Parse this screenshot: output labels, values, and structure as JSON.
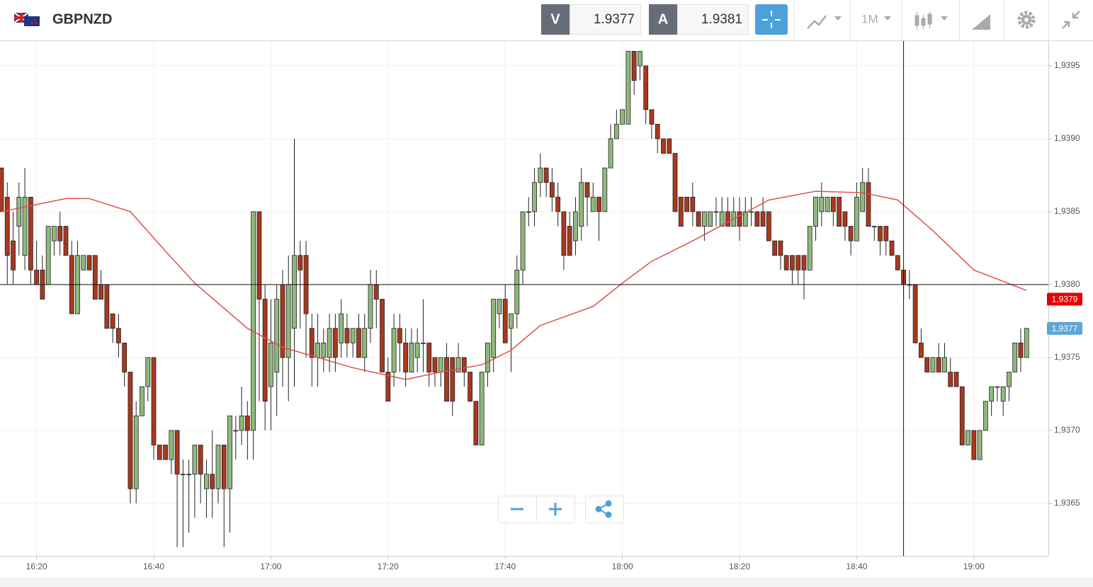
{
  "toolbar": {
    "symbol": "GBPNZD",
    "bid_label": "V",
    "bid": 1.9377,
    "ask_label": "A",
    "ask": 1.9381,
    "timeframe": "1M"
  },
  "chart_data": {
    "type": "candlestick",
    "categories": [
      "16:14",
      "16:15",
      "16:16",
      "16:17",
      "16:18",
      "16:19",
      "16:20",
      "16:21",
      "16:22",
      "16:23",
      "16:24",
      "16:25",
      "16:26",
      "16:27",
      "16:28",
      "16:29",
      "16:30",
      "16:31",
      "16:32",
      "16:33",
      "16:34",
      "16:35",
      "16:36",
      "16:37",
      "16:38",
      "16:39",
      "16:40",
      "16:41",
      "16:42",
      "16:43",
      "16:44",
      "16:45",
      "16:46",
      "16:47",
      "16:48",
      "16:49",
      "16:50",
      "16:51",
      "16:52",
      "16:53",
      "16:54",
      "16:55",
      "16:56",
      "16:57",
      "16:58",
      "16:59",
      "17:00",
      "17:01",
      "17:02",
      "17:03",
      "17:04",
      "17:05",
      "17:06",
      "17:07",
      "17:08",
      "17:09",
      "17:10",
      "17:11",
      "17:12",
      "17:13",
      "17:14",
      "17:15",
      "17:16",
      "17:17",
      "17:18",
      "17:19",
      "17:20",
      "17:21",
      "17:22",
      "17:23",
      "17:24",
      "17:25",
      "17:26",
      "17:27",
      "17:28",
      "17:29",
      "17:30",
      "17:31",
      "17:32",
      "17:33",
      "17:34",
      "17:35",
      "17:36",
      "17:37",
      "17:38",
      "17:39",
      "17:40",
      "17:41",
      "17:42",
      "17:43",
      "17:44",
      "17:45",
      "17:46",
      "17:47",
      "17:48",
      "17:49",
      "17:50",
      "17:51",
      "17:52",
      "17:53",
      "17:54",
      "17:55",
      "17:56",
      "17:57",
      "17:58",
      "17:59",
      "18:00",
      "18:01",
      "18:02",
      "18:03",
      "18:04",
      "18:05",
      "18:06",
      "18:07",
      "18:08",
      "18:09",
      "18:10",
      "18:11",
      "18:12",
      "18:13",
      "18:14",
      "18:15",
      "18:16",
      "18:17",
      "18:18",
      "18:19",
      "18:20",
      "18:21",
      "18:22",
      "18:23",
      "18:24",
      "18:25",
      "18:26",
      "18:27",
      "18:28",
      "18:29",
      "18:30",
      "18:31",
      "18:32",
      "18:33",
      "18:34",
      "18:35",
      "18:36",
      "18:37",
      "18:38",
      "18:39",
      "18:40",
      "18:41",
      "18:42",
      "18:43",
      "18:44",
      "18:45",
      "18:46",
      "18:47",
      "18:48",
      "18:49",
      "18:50",
      "18:51",
      "18:52",
      "18:53",
      "18:54",
      "18:55",
      "18:56",
      "18:57",
      "18:58",
      "18:59",
      "19:00",
      "19:01",
      "19:02",
      "19:03",
      "19:04",
      "19:05",
      "19:06",
      "19:07",
      "19:08",
      "19:09"
    ],
    "open": [
      1.9388,
      1.9386,
      1.9383,
      1.9384,
      1.9382,
      1.9386,
      1.9381,
      1.9381,
      1.938,
      1.9383,
      1.9384,
      1.9384,
      1.9382,
      1.9378,
      1.9381,
      1.9382,
      1.9382,
      1.938,
      1.938,
      1.9378,
      1.9377,
      1.9376,
      1.9374,
      1.9366,
      1.9371,
      1.9373,
      1.9375,
      1.9369,
      1.9369,
      1.9368,
      1.937,
      1.9367,
      1.9367,
      1.9367,
      1.9369,
      1.9366,
      1.9367,
      1.9366,
      1.9369,
      1.9366,
      1.937,
      1.937,
      1.9371,
      1.937,
      1.9385,
      1.9379,
      1.9373,
      1.9374,
      1.938,
      1.9375,
      1.9377,
      1.9382,
      1.9382,
      1.9377,
      1.9375,
      1.9375,
      1.9375,
      1.9377,
      1.9376,
      1.9377,
      1.9376,
      1.9377,
      1.9375,
      1.9377,
      1.938,
      1.9379,
      1.9374,
      1.9374,
      1.9377,
      1.9376,
      1.9374,
      1.9375,
      1.9376,
      1.9376,
      1.9375,
      1.9374,
      1.9375,
      1.9375,
      1.9374,
      1.9375,
      1.9374,
      1.9372,
      1.9369,
      1.9374,
      1.9375,
      1.9378,
      1.9379,
      1.9377,
      1.9378,
      1.9381,
      1.9385,
      1.9385,
      1.9387,
      1.9388,
      1.9387,
      1.9386,
      1.9385,
      1.9384,
      1.9383,
      1.9384,
      1.9387,
      1.9385,
      1.9386,
      1.9385,
      1.9388,
      1.939,
      1.9391,
      1.9391,
      1.9396,
      1.9395,
      1.9395,
      1.9392,
      1.9391,
      1.939,
      1.939,
      1.9389,
      1.9386,
      1.9386,
      1.9386,
      1.9385,
      1.9384,
      1.9384,
      1.9385,
      1.9384,
      1.9385,
      1.9384,
      1.9385,
      1.9384,
      1.9385,
      1.9385,
      1.9385,
      1.9385,
      1.9383,
      1.9383,
      1.9382,
      1.9382,
      1.9382,
      1.9382,
      1.9381,
      1.9384,
      1.9385,
      1.9385,
      1.9386,
      1.9386,
      1.9385,
      1.9384,
      1.9383,
      1.9385,
      1.9387,
      1.9384,
      1.9384,
      1.9384,
      1.9383,
      1.9382,
      1.9381,
      1.938,
      1.938,
      1.9376,
      1.9375,
      1.9374,
      1.9375,
      1.9374,
      1.9374,
      1.9374,
      1.9373,
      1.9369,
      1.937,
      1.9368,
      1.937,
      1.9372,
      1.9373,
      1.9372,
      1.9373,
      1.9374,
      1.9376,
      1.9375
    ],
    "high": [
      1.9388,
      1.9387,
      1.9385,
      1.9387,
      1.9388,
      1.9386,
      1.9383,
      1.9382,
      1.9384,
      1.9384,
      1.9385,
      1.9384,
      1.9383,
      1.9383,
      1.9382,
      1.9382,
      1.9382,
      1.9381,
      1.938,
      1.9378,
      1.9378,
      1.9376,
      1.9374,
      1.9372,
      1.9373,
      1.9375,
      1.9375,
      1.9369,
      1.9369,
      1.937,
      1.937,
      1.9368,
      1.9368,
      1.9369,
      1.9369,
      1.9368,
      1.937,
      1.9369,
      1.9369,
      1.9371,
      1.9371,
      1.9373,
      1.9372,
      1.9385,
      1.9385,
      1.938,
      1.9379,
      1.938,
      1.9381,
      1.9382,
      1.939,
      1.9383,
      1.9383,
      1.9378,
      1.9378,
      1.9377,
      1.9378,
      1.9378,
      1.9379,
      1.9378,
      1.9377,
      1.9378,
      1.9378,
      1.9381,
      1.9381,
      1.9379,
      1.9375,
      1.9378,
      1.9378,
      1.9377,
      1.9377,
      1.9377,
      1.9379,
      1.9376,
      1.9375,
      1.9375,
      1.9376,
      1.9375,
      1.9376,
      1.9375,
      1.9374,
      1.9372,
      1.9374,
      1.9376,
      1.9379,
      1.9379,
      1.938,
      1.9378,
      1.9382,
      1.9385,
      1.9386,
      1.9388,
      1.9389,
      1.9388,
      1.9388,
      1.9387,
      1.9385,
      1.9385,
      1.9386,
      1.9388,
      1.9387,
      1.9387,
      1.9386,
      1.9388,
      1.9391,
      1.9392,
      1.9392,
      1.9396,
      1.9396,
      1.9396,
      1.9395,
      1.9392,
      1.9391,
      1.939,
      1.939,
      1.9389,
      1.9386,
      1.9386,
      1.9387,
      1.9385,
      1.9385,
      1.9385,
      1.9386,
      1.9386,
      1.9386,
      1.9386,
      1.9386,
      1.9386,
      1.9386,
      1.9385,
      1.9386,
      1.9385,
      1.9383,
      1.9383,
      1.9382,
      1.9382,
      1.9382,
      1.9382,
      1.9384,
      1.9386,
      1.9387,
      1.9386,
      1.9386,
      1.9386,
      1.9385,
      1.9384,
      1.9387,
      1.9388,
      1.9388,
      1.9384,
      1.9384,
      1.9384,
      1.9383,
      1.9382,
      1.9381,
      1.9381,
      1.938,
      1.9377,
      1.9375,
      1.9375,
      1.9376,
      1.9376,
      1.9375,
      1.9374,
      1.9373,
      1.937,
      1.937,
      1.937,
      1.9372,
      1.9373,
      1.9373,
      1.9373,
      1.9374,
      1.9376,
      1.9377,
      1.9377
    ],
    "low": [
      1.9385,
      1.938,
      1.938,
      1.9382,
      1.9381,
      1.938,
      1.938,
      1.9379,
      1.938,
      1.9382,
      1.9382,
      1.9382,
      1.9378,
      1.9378,
      1.9381,
      1.9381,
      1.9379,
      1.9379,
      1.9377,
      1.9376,
      1.9375,
      1.9373,
      1.9365,
      1.9365,
      1.9371,
      1.9372,
      1.9368,
      1.9368,
      1.9368,
      1.9367,
      1.9362,
      1.9362,
      1.9363,
      1.9364,
      1.9365,
      1.9364,
      1.9364,
      1.9365,
      1.9362,
      1.9363,
      1.9368,
      1.9369,
      1.9368,
      1.9368,
      1.9372,
      1.937,
      1.937,
      1.9371,
      1.9373,
      1.9372,
      1.9373,
      1.9377,
      1.9375,
      1.9373,
      1.9373,
      1.9374,
      1.9374,
      1.9374,
      1.9375,
      1.9375,
      1.9375,
      1.9375,
      1.9374,
      1.9376,
      1.9377,
      1.9374,
      1.9372,
      1.9373,
      1.9374,
      1.9373,
      1.9374,
      1.9374,
      1.9374,
      1.9373,
      1.9373,
      1.9373,
      1.9372,
      1.9371,
      1.9374,
      1.9373,
      1.9372,
      1.9369,
      1.9369,
      1.9373,
      1.9374,
      1.9377,
      1.9376,
      1.9374,
      1.9377,
      1.938,
      1.9384,
      1.9384,
      1.9386,
      1.9386,
      1.9385,
      1.9384,
      1.9381,
      1.9382,
      1.9382,
      1.9383,
      1.9384,
      1.9385,
      1.9383,
      1.9385,
      1.9388,
      1.939,
      1.9391,
      1.9391,
      1.9393,
      1.9394,
      1.9391,
      1.939,
      1.9389,
      1.9389,
      1.9389,
      1.9385,
      1.9384,
      1.9385,
      1.9384,
      1.9384,
      1.9383,
      1.9384,
      1.9384,
      1.9384,
      1.9384,
      1.9384,
      1.9383,
      1.9384,
      1.9384,
      1.9384,
      1.9384,
      1.9383,
      1.9382,
      1.9381,
      1.9381,
      1.938,
      1.938,
      1.9379,
      1.9381,
      1.9383,
      1.9384,
      1.9385,
      1.9384,
      1.9384,
      1.9383,
      1.9382,
      1.9383,
      1.9385,
      1.9384,
      1.9383,
      1.9382,
      1.9382,
      1.9382,
      1.9381,
      1.9379,
      1.9379,
      1.9376,
      1.9375,
      1.9374,
      1.9374,
      1.9374,
      1.9374,
      1.9373,
      1.9373,
      1.9369,
      1.9369,
      1.9368,
      1.9368,
      1.937,
      1.9371,
      1.9372,
      1.9371,
      1.9372,
      1.9374,
      1.9374,
      1.9375
    ],
    "close": [
      1.9385,
      1.9382,
      1.9381,
      1.9386,
      1.9386,
      1.9381,
      1.938,
      1.9379,
      1.9384,
      1.9384,
      1.9383,
      1.9382,
      1.9378,
      1.9382,
      1.9382,
      1.9381,
      1.9379,
      1.9379,
      1.9377,
      1.9377,
      1.9376,
      1.9374,
      1.9366,
      1.9371,
      1.9373,
      1.9375,
      1.9369,
      1.9368,
      1.9368,
      1.937,
      1.9367,
      1.9367,
      1.9367,
      1.9369,
      1.9367,
      1.9367,
      1.9366,
      1.9369,
      1.9366,
      1.9371,
      1.937,
      1.9371,
      1.937,
      1.9385,
      1.9379,
      1.9372,
      1.9376,
      1.9379,
      1.9375,
      1.938,
      1.9382,
      1.9381,
      1.9378,
      1.9375,
      1.9376,
      1.9376,
      1.9377,
      1.9375,
      1.9378,
      1.9376,
      1.9377,
      1.9375,
      1.9377,
      1.938,
      1.9379,
      1.9374,
      1.9372,
      1.9377,
      1.9376,
      1.9374,
      1.9376,
      1.9376,
      1.9376,
      1.9374,
      1.9374,
      1.9375,
      1.9372,
      1.9372,
      1.9375,
      1.9374,
      1.9372,
      1.9369,
      1.9374,
      1.9376,
      1.9379,
      1.9379,
      1.9376,
      1.9378,
      1.9381,
      1.9385,
      1.9385,
      1.9387,
      1.9388,
      1.9387,
      1.9386,
      1.9385,
      1.9382,
      1.9382,
      1.9385,
      1.9387,
      1.9386,
      1.9386,
      1.9385,
      1.9388,
      1.939,
      1.9391,
      1.9392,
      1.9396,
      1.9394,
      1.9396,
      1.9392,
      1.9391,
      1.939,
      1.9389,
      1.9389,
      1.9385,
      1.9384,
      1.9385,
      1.9385,
      1.9384,
      1.9385,
      1.9385,
      1.9385,
      1.9385,
      1.9384,
      1.9385,
      1.9384,
      1.9385,
      1.9385,
      1.9384,
      1.9384,
      1.9383,
      1.9382,
      1.9382,
      1.9381,
      1.9381,
      1.9381,
      1.9381,
      1.9384,
      1.9386,
      1.9386,
      1.9386,
      1.9385,
      1.9384,
      1.9384,
      1.9383,
      1.9386,
      1.9387,
      1.9384,
      1.9384,
      1.9383,
      1.9383,
      1.9382,
      1.9381,
      1.938,
      1.938,
      1.9376,
      1.9375,
      1.9374,
      1.9375,
      1.9374,
      1.9375,
      1.9373,
      1.9373,
      1.9369,
      1.937,
      1.9368,
      1.937,
      1.9372,
      1.9373,
      1.9373,
      1.9373,
      1.9374,
      1.9376,
      1.9375,
      1.9377
    ],
    "up_color": "#8fb97c",
    "down_color": "#a8381f",
    "moving_average": {
      "color": "#e0504a",
      "x": [
        "16:14",
        "16:25",
        "16:29",
        "16:36",
        "16:42",
        "16:47",
        "16:56",
        "17:02",
        "17:08",
        "17:14",
        "17:23",
        "17:29",
        "17:36",
        "17:41",
        "17:46",
        "17:55",
        "18:00",
        "18:05",
        "18:12",
        "18:19",
        "18:25",
        "18:33",
        "18:41",
        "18:47",
        "18:53",
        "19:00",
        "19:09"
      ],
      "values": [
        1.9385,
        1.93859,
        1.93859,
        1.9385,
        1.93823,
        1.93801,
        1.9377,
        1.93757,
        1.9375,
        1.93743,
        1.93735,
        1.9374,
        1.93745,
        1.93755,
        1.93772,
        1.93785,
        1.93801,
        1.93816,
        1.9383,
        1.93845,
        1.93858,
        1.93864,
        1.93863,
        1.93858,
        1.93837,
        1.9381,
        1.93796
      ]
    },
    "crosshair": {
      "x": "18:48",
      "y": 1.938
    },
    "price_tags": [
      {
        "value": 1.9379,
        "label": "1,9379",
        "color": "#e80000"
      },
      {
        "value": 1.9377,
        "label": "1,9377",
        "color": "#5aa7d8"
      }
    ],
    "ylim": [
      1.93614,
      1.93967
    ],
    "yticks": [
      {
        "value": 1.9365,
        "label": "1,9365"
      },
      {
        "value": 1.937,
        "label": "1,9370"
      },
      {
        "value": 1.9375,
        "label": "1,9375"
      },
      {
        "value": 1.938,
        "label": "1,9380"
      },
      {
        "value": 1.9385,
        "label": "1,9385"
      },
      {
        "value": 1.939,
        "label": "1,9390"
      },
      {
        "value": 1.9395,
        "label": "1,9395"
      }
    ],
    "xticks": [
      "16:20",
      "16:40",
      "17:00",
      "17:20",
      "17:40",
      "18:00",
      "18:20",
      "18:40",
      "19:00"
    ],
    "grid": true
  }
}
